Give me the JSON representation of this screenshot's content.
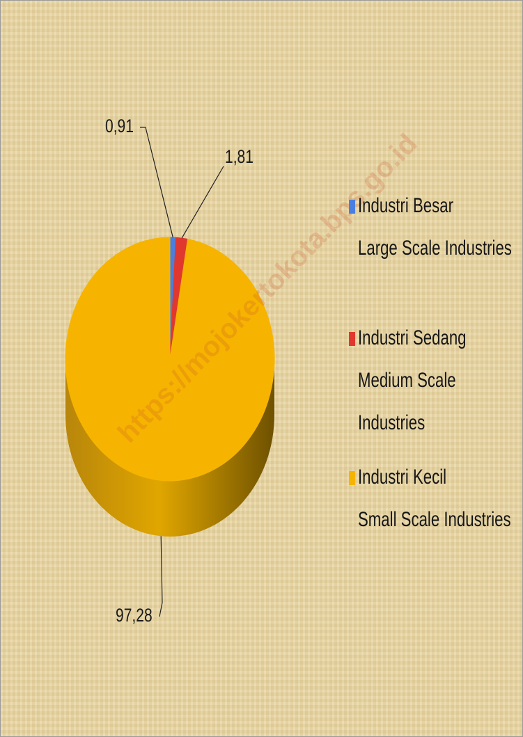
{
  "chart_data": {
    "type": "pie",
    "categories": [
      "Industri Besar\nLarge Scale Industries",
      "Industri Sedang\nMedium Scale\nIndustries",
      "Industri Kecil\nSmall Scale Industries"
    ],
    "values": [
      0.91,
      1.81,
      97.28
    ],
    "value_labels": [
      "0,91",
      "1,81",
      "97,28"
    ],
    "colors": [
      "#4a7fe0",
      "#e0382e",
      "#f6b400"
    ],
    "legend": "right",
    "watermark": "https://mojokertokota.bps.go.id"
  }
}
